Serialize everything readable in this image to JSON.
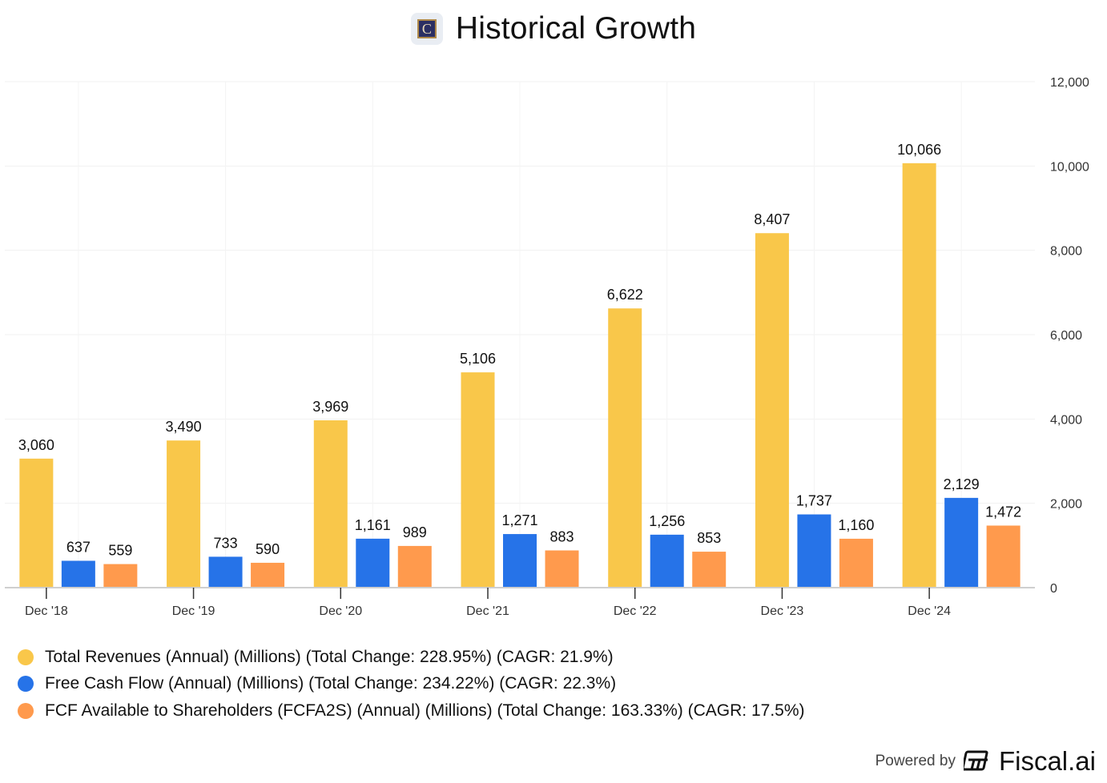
{
  "header": {
    "title": "Historical Growth",
    "logo_letter": "C"
  },
  "footer": {
    "powered_label": "Powered by",
    "brand_name": "Fiscal.ai"
  },
  "legend": [
    {
      "label": "Total Revenues (Annual) (Millions) (Total Change: 228.95%) (CAGR: 21.9%)",
      "color": "#F9C74A"
    },
    {
      "label": "Free Cash Flow (Annual) (Millions) (Total Change: 234.22%) (CAGR: 22.3%)",
      "color": "#2673E8"
    },
    {
      "label": "FCF Available to Shareholders (FCFA2S) (Annual) (Millions) (Total Change: 163.33%) (CAGR: 17.5%)",
      "color": "#FF9A4D"
    }
  ],
  "chart_data": {
    "type": "bar",
    "title": "Historical Growth",
    "categories": [
      "Dec '18",
      "Dec '19",
      "Dec '20",
      "Dec '21",
      "Dec '22",
      "Dec '23",
      "Dec '24"
    ],
    "series": [
      {
        "name": "Total Revenues (Annual) (Millions)",
        "color": "#F9C74A",
        "values": [
          3060,
          3490,
          3969,
          5106,
          6622,
          8407,
          10066
        ],
        "labels": [
          "3,060",
          "3,490",
          "3,969",
          "5,106",
          "6,622",
          "8,407",
          "10,066"
        ]
      },
      {
        "name": "Free Cash Flow (Annual) (Millions)",
        "color": "#2673E8",
        "values": [
          637,
          733,
          1161,
          1271,
          1256,
          1737,
          2129
        ],
        "labels": [
          "637",
          "733",
          "1,161",
          "1,271",
          "1,256",
          "1,737",
          "2,129"
        ]
      },
      {
        "name": "FCF Available to Shareholders (FCFA2S) (Annual) (Millions)",
        "color": "#FF9A4D",
        "values": [
          559,
          590,
          989,
          883,
          853,
          1160,
          1472
        ],
        "labels": [
          "559",
          "590",
          "989",
          "883",
          "853",
          "1,160",
          "1,472"
        ]
      }
    ],
    "yaxis": {
      "position": "right",
      "ylim": [
        0,
        12000
      ],
      "ticks": [
        0,
        2000,
        4000,
        6000,
        8000,
        10000,
        12000
      ],
      "tick_labels": [
        "0",
        "2,000",
        "4,000",
        "6,000",
        "8,000",
        "10,000",
        "12,000"
      ]
    },
    "grid": true
  }
}
